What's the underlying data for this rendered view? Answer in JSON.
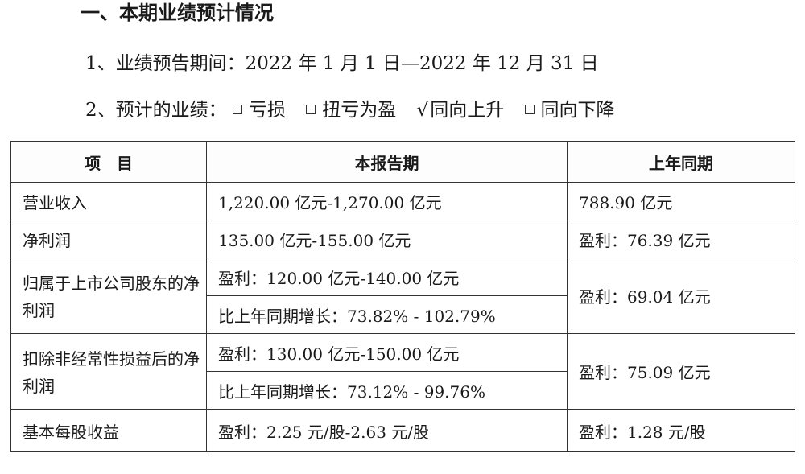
{
  "heading": "一、本期业绩预计情况",
  "period_line": "1、业绩预告期间：2022 年 1 月 1 日—2022 年 12 月 31 日",
  "forecast": {
    "label": "2、预计的业绩：",
    "options": [
      {
        "text": "亏损",
        "checked": false
      },
      {
        "text": "扭亏为盈",
        "checked": false
      },
      {
        "text": "同向上升",
        "checked": true
      },
      {
        "text": "同向下降",
        "checked": false
      }
    ],
    "check_mark": "√"
  },
  "table": {
    "headers": [
      "项　目",
      "本报告期",
      "上年同期"
    ],
    "rows": {
      "revenue": {
        "item": "营业收入",
        "current": "1,220.00 亿元-1,270.00 亿元",
        "previous": "788.90 亿元"
      },
      "net_profit": {
        "item": "净利润",
        "current": "135.00 亿元-155.00 亿元",
        "previous": "盈利：76.39 亿元"
      },
      "attributable": {
        "item": "归属于上市公司股东的净利润",
        "current_profit": "盈利：120.00 亿元-140.00 亿元",
        "current_growth": "比上年同期增长：73.82% - 102.79%",
        "previous": "盈利：69.04 亿元"
      },
      "non_recurring": {
        "item": "扣除非经常性损益后的净利润",
        "current_profit": "盈利：130.00 亿元-150.00 亿元",
        "current_growth": "比上年同期增长：73.12% - 99.76%",
        "previous": "盈利：75.09 亿元"
      },
      "eps": {
        "item": "基本每股收益",
        "current": "盈利：2.25 元/股-2.63 元/股",
        "previous": "盈利：1.28 元/股"
      }
    }
  }
}
